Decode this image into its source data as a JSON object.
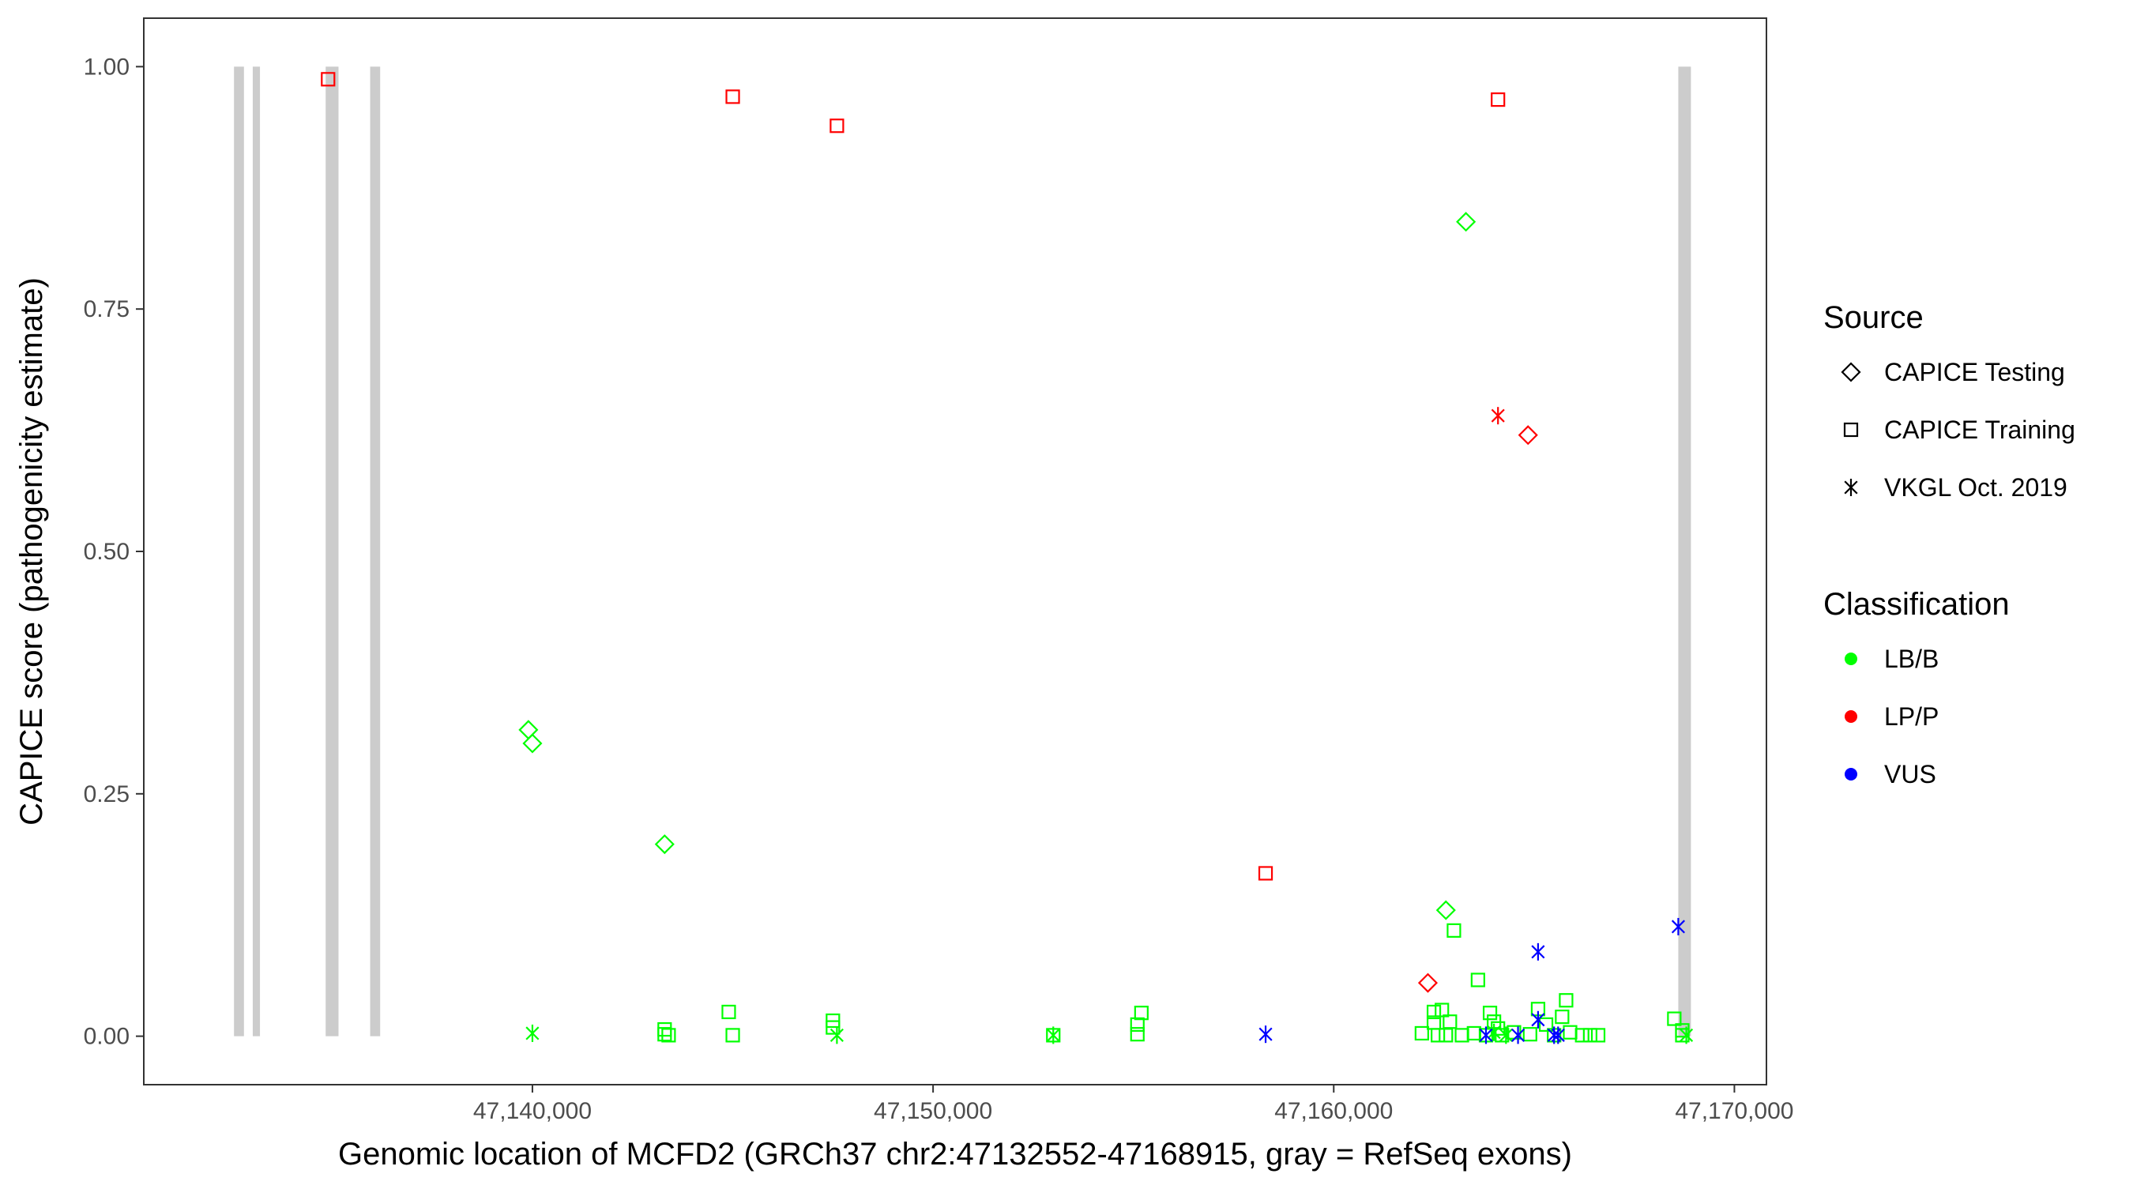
{
  "chart_data": {
    "type": "scatter",
    "xlabel": "Genomic location of MCFD2 (GRCh37 chr2:47132552-47168915, gray = RefSeq exons)",
    "ylabel": "CAPICE score (pathogenicity estimate)",
    "xlim": [
      47130300,
      47170800
    ],
    "ylim": [
      -0.05,
      1.05
    ],
    "x_ticks": [
      47140000,
      47150000,
      47160000,
      47170000
    ],
    "x_tick_labels": [
      "47,140,000",
      "47,150,000",
      "47,160,000",
      "47,170,000"
    ],
    "y_ticks": [
      0,
      0.25,
      0.5,
      0.75,
      1.0
    ],
    "y_tick_labels": [
      "0.00",
      "0.25",
      "0.50",
      "0.75",
      "1.00"
    ],
    "grid": false,
    "exons": [
      {
        "start": 47132552,
        "end": 47132800
      },
      {
        "start": 47133020,
        "end": 47133200
      },
      {
        "start": 47134840,
        "end": 47135160
      },
      {
        "start": 47135950,
        "end": 47136200
      },
      {
        "start": 47168600,
        "end": 47168915
      }
    ],
    "exon_color": "#cccccc",
    "legend": {
      "position": "right",
      "source_title": "Source",
      "source_items": [
        {
          "label": "CAPICE Testing",
          "shape": "diamond"
        },
        {
          "label": "CAPICE Training",
          "shape": "square"
        },
        {
          "label": "VKGL Oct. 2019",
          "shape": "asterisk"
        }
      ],
      "class_title": "Classification",
      "class_items": [
        {
          "label": "LB/B",
          "color": "#00ff00"
        },
        {
          "label": "LP/P",
          "color": "#ff0000"
        },
        {
          "label": "VUS",
          "color": "#0000ff"
        }
      ]
    },
    "points": [
      {
        "x": 47134900,
        "y": 0.987,
        "source": "CAPICE Training",
        "class": "LP/P"
      },
      {
        "x": 47145000,
        "y": 0.969,
        "source": "CAPICE Training",
        "class": "LP/P"
      },
      {
        "x": 47147600,
        "y": 0.939,
        "source": "CAPICE Training",
        "class": "LP/P"
      },
      {
        "x": 47164100,
        "y": 0.966,
        "source": "CAPICE Training",
        "class": "LP/P"
      },
      {
        "x": 47158300,
        "y": 0.168,
        "source": "CAPICE Training",
        "class": "LP/P"
      },
      {
        "x": 47164850,
        "y": 0.62,
        "source": "CAPICE Testing",
        "class": "LP/P"
      },
      {
        "x": 47162350,
        "y": 0.055,
        "source": "CAPICE Testing",
        "class": "LP/P"
      },
      {
        "x": 47164100,
        "y": 0.64,
        "source": "VKGL Oct. 2019",
        "class": "LP/P"
      },
      {
        "x": 47163300,
        "y": 0.84,
        "source": "CAPICE Testing",
        "class": "LB/B"
      },
      {
        "x": 47139900,
        "y": 0.316,
        "source": "CAPICE Testing",
        "class": "LB/B"
      },
      {
        "x": 47140000,
        "y": 0.302,
        "source": "CAPICE Testing",
        "class": "LB/B"
      },
      {
        "x": 47143300,
        "y": 0.198,
        "source": "CAPICE Testing",
        "class": "LB/B"
      },
      {
        "x": 47162800,
        "y": 0.13,
        "source": "CAPICE Testing",
        "class": "LB/B"
      },
      {
        "x": 47163000,
        "y": 0.109,
        "source": "CAPICE Training",
        "class": "LB/B"
      },
      {
        "x": 47163600,
        "y": 0.058,
        "source": "CAPICE Training",
        "class": "LB/B"
      },
      {
        "x": 47140000,
        "y": 0.003,
        "source": "VKGL Oct. 2019",
        "class": "LB/B"
      },
      {
        "x": 47143300,
        "y": 0.007,
        "source": "CAPICE Training",
        "class": "LB/B"
      },
      {
        "x": 47143300,
        "y": 0.002,
        "source": "CAPICE Training",
        "class": "LB/B"
      },
      {
        "x": 47143400,
        "y": 0.001,
        "source": "CAPICE Training",
        "class": "LB/B"
      },
      {
        "x": 47144900,
        "y": 0.025,
        "source": "CAPICE Training",
        "class": "LB/B"
      },
      {
        "x": 47145000,
        "y": 0.001,
        "source": "CAPICE Training",
        "class": "LB/B"
      },
      {
        "x": 47147500,
        "y": 0.016,
        "source": "CAPICE Training",
        "class": "LB/B"
      },
      {
        "x": 47147500,
        "y": 0.009,
        "source": "CAPICE Training",
        "class": "LB/B"
      },
      {
        "x": 47147600,
        "y": 0.001,
        "source": "VKGL Oct. 2019",
        "class": "LB/B"
      },
      {
        "x": 47153000,
        "y": 0.001,
        "source": "VKGL Oct. 2019",
        "class": "LB/B"
      },
      {
        "x": 47153000,
        "y": 0.001,
        "source": "CAPICE Training",
        "class": "LB/B"
      },
      {
        "x": 47155200,
        "y": 0.024,
        "source": "CAPICE Training",
        "class": "LB/B"
      },
      {
        "x": 47155100,
        "y": 0.012,
        "source": "CAPICE Training",
        "class": "LB/B"
      },
      {
        "x": 47155100,
        "y": 0.002,
        "source": "CAPICE Training",
        "class": "LB/B"
      },
      {
        "x": 47162200,
        "y": 0.003,
        "source": "CAPICE Training",
        "class": "LB/B"
      },
      {
        "x": 47162500,
        "y": 0.025,
        "source": "CAPICE Training",
        "class": "LB/B"
      },
      {
        "x": 47162500,
        "y": 0.014,
        "source": "CAPICE Training",
        "class": "LB/B"
      },
      {
        "x": 47162700,
        "y": 0.027,
        "source": "CAPICE Training",
        "class": "LB/B"
      },
      {
        "x": 47162600,
        "y": 0.001,
        "source": "CAPICE Training",
        "class": "LB/B"
      },
      {
        "x": 47162900,
        "y": 0.015,
        "source": "CAPICE Training",
        "class": "LB/B"
      },
      {
        "x": 47162800,
        "y": 0.001,
        "source": "CAPICE Training",
        "class": "LB/B"
      },
      {
        "x": 47163200,
        "y": 0.001,
        "source": "CAPICE Training",
        "class": "LB/B"
      },
      {
        "x": 47163500,
        "y": 0.003,
        "source": "CAPICE Training",
        "class": "LB/B"
      },
      {
        "x": 47163800,
        "y": 0.001,
        "source": "CAPICE Training",
        "class": "LB/B"
      },
      {
        "x": 47163900,
        "y": 0.024,
        "source": "CAPICE Training",
        "class": "LB/B"
      },
      {
        "x": 47164000,
        "y": 0.015,
        "source": "CAPICE Training",
        "class": "LB/B"
      },
      {
        "x": 47164100,
        "y": 0.008,
        "source": "CAPICE Training",
        "class": "LB/B"
      },
      {
        "x": 47164200,
        "y": 0.001,
        "source": "CAPICE Training",
        "class": "LB/B"
      },
      {
        "x": 47164000,
        "y": 0.004,
        "source": "VKGL Oct. 2019",
        "class": "LB/B"
      },
      {
        "x": 47164300,
        "y": 0.001,
        "source": "VKGL Oct. 2019",
        "class": "LB/B"
      },
      {
        "x": 47164500,
        "y": 0.004,
        "source": "CAPICE Training",
        "class": "LB/B"
      },
      {
        "x": 47164900,
        "y": 0.002,
        "source": "CAPICE Training",
        "class": "LB/B"
      },
      {
        "x": 47165100,
        "y": 0.028,
        "source": "CAPICE Training",
        "class": "LB/B"
      },
      {
        "x": 47165300,
        "y": 0.012,
        "source": "CAPICE Training",
        "class": "LB/B"
      },
      {
        "x": 47165500,
        "y": 0.001,
        "source": "CAPICE Training",
        "class": "LB/B"
      },
      {
        "x": 47165700,
        "y": 0.02,
        "source": "CAPICE Training",
        "class": "LB/B"
      },
      {
        "x": 47165800,
        "y": 0.037,
        "source": "CAPICE Training",
        "class": "LB/B"
      },
      {
        "x": 47165900,
        "y": 0.004,
        "source": "CAPICE Training",
        "class": "LB/B"
      },
      {
        "x": 47166200,
        "y": 0.001,
        "source": "CAPICE Training",
        "class": "LB/B"
      },
      {
        "x": 47166400,
        "y": 0.001,
        "source": "CAPICE Training",
        "class": "LB/B"
      },
      {
        "x": 47166600,
        "y": 0.001,
        "source": "CAPICE Training",
        "class": "LB/B"
      },
      {
        "x": 47168500,
        "y": 0.018,
        "source": "CAPICE Training",
        "class": "LB/B"
      },
      {
        "x": 47168700,
        "y": 0.006,
        "source": "CAPICE Training",
        "class": "LB/B"
      },
      {
        "x": 47168700,
        "y": 0.001,
        "source": "CAPICE Training",
        "class": "LB/B"
      },
      {
        "x": 47168800,
        "y": 0.001,
        "source": "VKGL Oct. 2019",
        "class": "LB/B"
      },
      {
        "x": 47158300,
        "y": 0.002,
        "source": "VKGL Oct. 2019",
        "class": "VUS"
      },
      {
        "x": 47163800,
        "y": 0.001,
        "source": "VKGL Oct. 2019",
        "class": "VUS"
      },
      {
        "x": 47164600,
        "y": 0.001,
        "source": "VKGL Oct. 2019",
        "class": "VUS"
      },
      {
        "x": 47165100,
        "y": 0.017,
        "source": "VKGL Oct. 2019",
        "class": "VUS"
      },
      {
        "x": 47165100,
        "y": 0.087,
        "source": "VKGL Oct. 2019",
        "class": "VUS"
      },
      {
        "x": 47165500,
        "y": 0.001,
        "source": "VKGL Oct. 2019",
        "class": "VUS"
      },
      {
        "x": 47165600,
        "y": 0.001,
        "source": "VKGL Oct. 2019",
        "class": "VUS"
      },
      {
        "x": 47168600,
        "y": 0.113,
        "source": "VKGL Oct. 2019",
        "class": "VUS"
      }
    ]
  }
}
